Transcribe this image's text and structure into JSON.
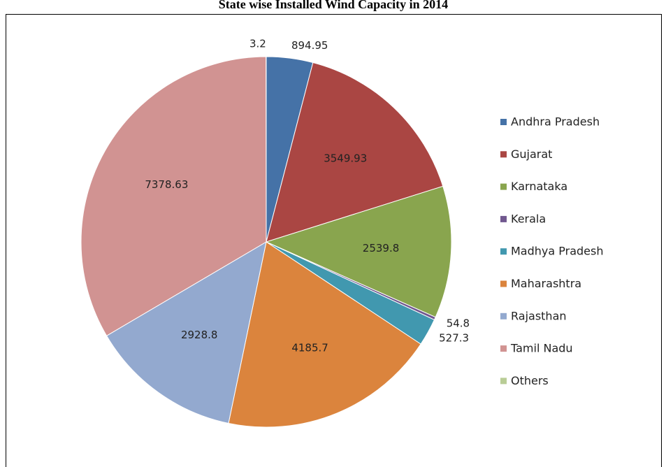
{
  "chart_data": {
    "type": "pie",
    "title": "State wise Installed Wind Capacity in 2014",
    "categories": [
      "Andhra Pradesh",
      "Gujarat",
      "Karnataka",
      "Kerala",
      "Madhya Pradesh",
      "Maharashtra",
      "Rajasthan",
      "Tamil Nadu",
      "Others"
    ],
    "values": [
      894.95,
      3549.93,
      2539.8,
      54.8,
      527.3,
      4185.7,
      2928.8,
      7378.63,
      3.2
    ],
    "colors": [
      "#4572a7",
      "#aa4643",
      "#89a54e",
      "#71588f",
      "#4198af",
      "#db843d",
      "#93a9cf",
      "#d19392",
      "#b9cd96"
    ],
    "legend": "right"
  }
}
